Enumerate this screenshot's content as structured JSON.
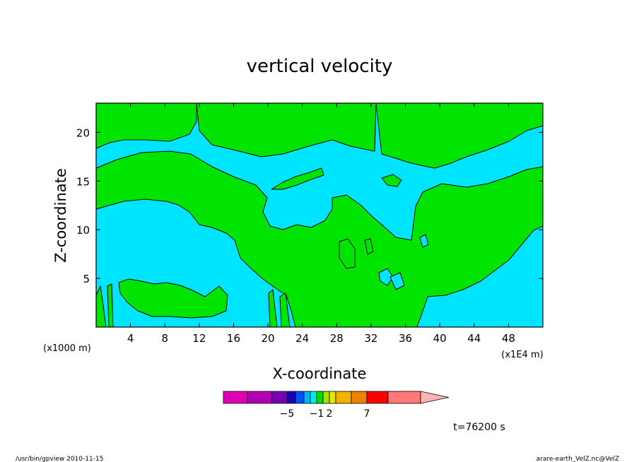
{
  "chart_data": {
    "type": "heatmap",
    "title": "vertical velocity",
    "xlabel": "X-coordinate",
    "ylabel": "Z-coordinate",
    "x_unit_left": "(x1000 m)",
    "x_unit_right": "(x1E4 m)",
    "xlim": [
      0,
      52
    ],
    "ylim": [
      0,
      23
    ],
    "x_ticks": [
      4,
      8,
      12,
      16,
      20,
      24,
      28,
      32,
      36,
      40,
      44,
      48
    ],
    "y_ticks": [
      5,
      10,
      15,
      20
    ],
    "field_colors": {
      "negative": "#00e5ff",
      "positive": "#00e400"
    },
    "colorbar": {
      "colors": [
        "#e000b4",
        "#b400b4",
        "#7800b4",
        "#1e00b4",
        "#0050ff",
        "#00b4ff",
        "#00ebeb",
        "#00e000",
        "#a0e600",
        "#e6e600",
        "#f0b400",
        "#f08200",
        "#ff0000",
        "#ff7878",
        "#ffb4b4"
      ],
      "tick_labels": [
        {
          "label": "−5",
          "boundary": 3
        },
        {
          "label": "−1",
          "boundary": 7
        },
        {
          "label": "2",
          "boundary": 9
        },
        {
          "label": "7",
          "boundary": 12
        }
      ]
    },
    "time_label": "t=76200 s"
  },
  "footer": {
    "left": "/usr/bin/gpview   2010-11-15",
    "right": "arare-earth_VelZ.nc@VelZ"
  }
}
